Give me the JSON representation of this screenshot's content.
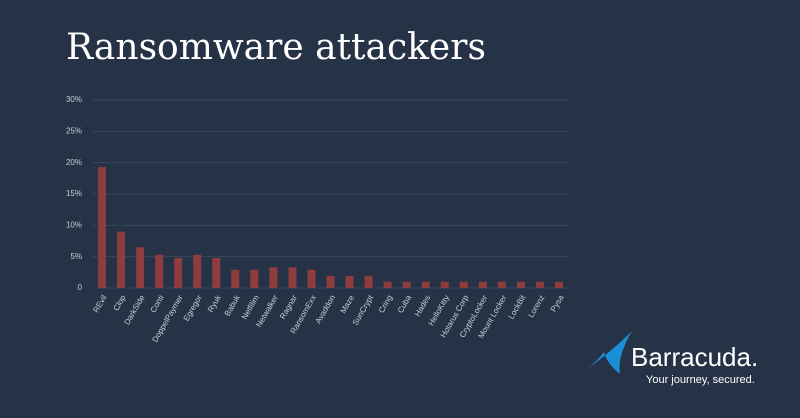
{
  "chart_data": {
    "type": "bar",
    "title": "Ransomware attackers",
    "categories": [
      "REvil",
      "Clop",
      "DarkSide",
      "Conti",
      "DoppelPaymer",
      "Egregor",
      "Ryuk",
      "Babuk",
      "Netfilim",
      "Netwalker",
      "Ragnar",
      "RansomExx",
      "Avaddon",
      "Maze",
      "SunCrypt",
      "Cring",
      "Cuba",
      "Hades",
      "HelloKitty",
      "Hotarus Corp",
      "CryptoLocker",
      "Mount Locker",
      "LockBit",
      "Lorenz",
      "Pysa"
    ],
    "values": [
      19.3,
      9,
      6.5,
      5.3,
      4.8,
      5.3,
      4.8,
      2.9,
      2.9,
      3.3,
      3.3,
      2.9,
      1.9,
      1.9,
      1.9,
      1,
      1,
      1,
      1,
      1,
      1,
      1,
      1,
      1,
      1
    ],
    "color": "#8e3c3c",
    "ylim": [
      0,
      30
    ],
    "yticks": [
      0,
      {
        "value": 5,
        "label": "5%"
      },
      {
        "value": 10,
        "label": "10%"
      },
      {
        "value": 15,
        "label": "15%"
      },
      {
        "value": 20,
        "label": "20%"
      },
      {
        "value": 25,
        "label": "25%"
      },
      {
        "value": 30,
        "label": "30%"
      }
    ],
    "grid": true
  },
  "brand": {
    "name": "Barracuda.",
    "tagline": "Your journey, secured."
  }
}
